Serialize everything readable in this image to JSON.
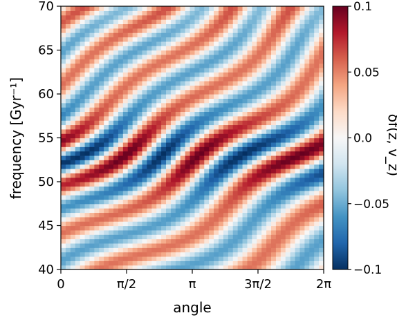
{
  "chart_data": {
    "type": "heatmap",
    "title": "",
    "xlabel": "angle",
    "ylabel": "frequency [Gyr⁻¹]",
    "colorbar_label": "δf(z, v_z)",
    "colormap": "RdBu_r",
    "xlim": [
      0,
      6.283
    ],
    "ylim": [
      40,
      70
    ],
    "clim": [
      -0.1,
      0.1
    ],
    "x_ticks": [
      {
        "value": 0,
        "label": "0"
      },
      {
        "value": 1.5708,
        "label": "π/2"
      },
      {
        "value": 3.1416,
        "label": "π"
      },
      {
        "value": 4.7124,
        "label": "3π/2"
      },
      {
        "value": 6.2832,
        "label": "2π"
      }
    ],
    "y_ticks": [
      {
        "value": 40,
        "label": "40"
      },
      {
        "value": 45,
        "label": "45"
      },
      {
        "value": 50,
        "label": "50"
      },
      {
        "value": 55,
        "label": "55"
      },
      {
        "value": 60,
        "label": "60"
      },
      {
        "value": 65,
        "label": "65"
      },
      {
        "value": 70,
        "label": "70"
      }
    ],
    "colorbar_ticks": [
      {
        "value": 0.1,
        "label": "0.1"
      },
      {
        "value": 0.05,
        "label": "0.05"
      },
      {
        "value": 0.0,
        "label": "0.0"
      },
      {
        "value": -0.05,
        "label": "−0.05"
      },
      {
        "value": -0.1,
        "label": "−0.1"
      }
    ],
    "grid": false,
    "legend": "none"
  }
}
